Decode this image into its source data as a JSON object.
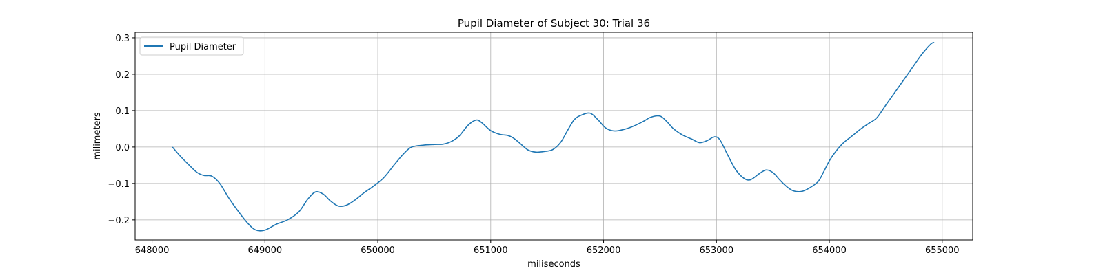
{
  "chart_data": {
    "type": "line",
    "title": "Pupil Diameter of Subject 30: Trial 36",
    "xlabel": "miliseconds",
    "ylabel": "milimeters",
    "xlim": [
      647850,
      655270
    ],
    "ylim": [
      -0.255,
      0.315
    ],
    "xticks": [
      648000,
      649000,
      650000,
      651000,
      652000,
      653000,
      654000,
      655000
    ],
    "yticks": [
      -0.2,
      -0.1,
      0.0,
      0.1,
      0.2,
      0.3
    ],
    "xtick_labels": [
      "648000",
      "649000",
      "650000",
      "651000",
      "652000",
      "653000",
      "654000",
      "655000"
    ],
    "ytick_labels": [
      "−0.2",
      "−0.1",
      "0.0",
      "0.1",
      "0.2",
      "0.3"
    ],
    "grid": true,
    "legend_position": "upper-left",
    "series": [
      {
        "name": "Pupil Diameter",
        "color": "#1f77b4",
        "x": [
          648180,
          648250,
          648330,
          648400,
          648460,
          648530,
          648600,
          648680,
          648760,
          648850,
          648920,
          649000,
          649100,
          649200,
          649300,
          649380,
          649450,
          649520,
          649580,
          649650,
          649720,
          649800,
          649880,
          649950,
          650050,
          650150,
          650230,
          650300,
          650400,
          650500,
          650580,
          650650,
          650720,
          650800,
          650870,
          650920,
          651000,
          651080,
          651150,
          651200,
          651260,
          651330,
          651400,
          651480,
          651550,
          651620,
          651680,
          651740,
          651800,
          651880,
          651950,
          652020,
          652100,
          652200,
          652270,
          652350,
          652420,
          652500,
          652560,
          652620,
          652700,
          652780,
          652850,
          652920,
          652980,
          653030,
          653100,
          653170,
          653240,
          653300,
          653380,
          653440,
          653500,
          653560,
          653620,
          653680,
          653750,
          653820,
          653900,
          653950,
          654000,
          654050,
          654120,
          654200,
          654280,
          654350,
          654420,
          654500,
          654580,
          654660,
          654740,
          654820,
          654900,
          654930
        ],
        "y": [
          0.0,
          -0.025,
          -0.05,
          -0.07,
          -0.078,
          -0.08,
          -0.1,
          -0.14,
          -0.175,
          -0.21,
          -0.228,
          -0.228,
          -0.212,
          -0.2,
          -0.178,
          -0.143,
          -0.123,
          -0.13,
          -0.148,
          -0.162,
          -0.16,
          -0.145,
          -0.125,
          -0.11,
          -0.085,
          -0.047,
          -0.018,
          0.0,
          0.005,
          0.007,
          0.008,
          0.015,
          0.03,
          0.06,
          0.074,
          0.067,
          0.045,
          0.035,
          0.032,
          0.025,
          0.01,
          -0.008,
          -0.014,
          -0.012,
          -0.007,
          0.013,
          0.045,
          0.075,
          0.087,
          0.093,
          0.075,
          0.052,
          0.044,
          0.05,
          0.058,
          0.07,
          0.082,
          0.085,
          0.07,
          0.05,
          0.033,
          0.022,
          0.012,
          0.018,
          0.028,
          0.02,
          -0.022,
          -0.062,
          -0.085,
          -0.09,
          -0.073,
          -0.063,
          -0.07,
          -0.09,
          -0.108,
          -0.12,
          -0.122,
          -0.113,
          -0.095,
          -0.068,
          -0.038,
          -0.015,
          0.01,
          0.03,
          0.05,
          0.065,
          0.08,
          0.115,
          0.15,
          0.185,
          0.22,
          0.255,
          0.283,
          0.287
        ]
      }
    ]
  }
}
